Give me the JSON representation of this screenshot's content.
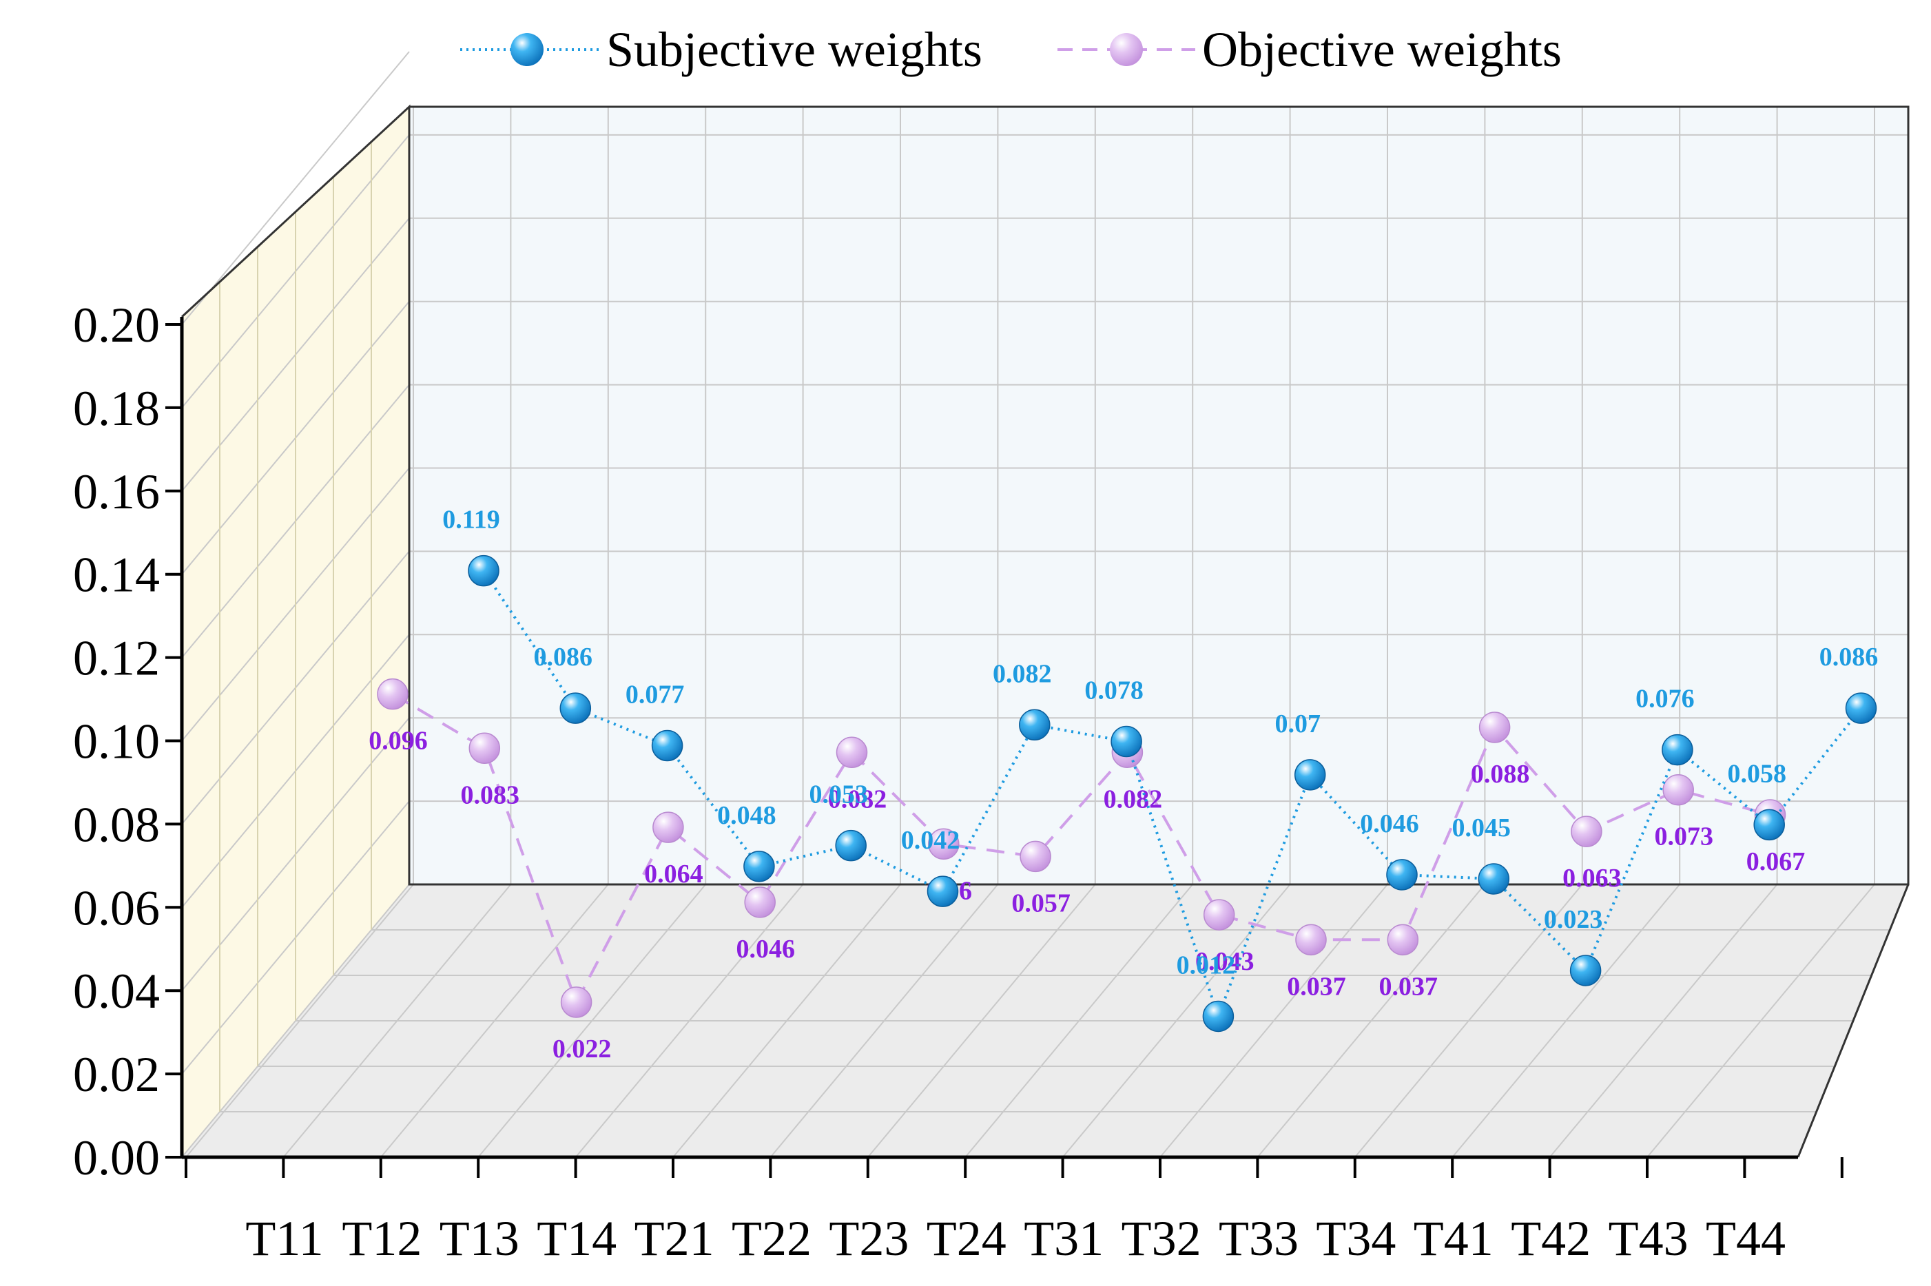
{
  "chart_data": {
    "type": "line",
    "title": "",
    "xlabel": "",
    "ylabel": "",
    "categories": [
      "T11",
      "T12",
      "T13",
      "T14",
      "T21",
      "T22",
      "T23",
      "T24",
      "T31",
      "T32",
      "T33",
      "T34",
      "T41",
      "T42",
      "T43",
      "T44"
    ],
    "y_ticks": [
      "0.00",
      "0.02",
      "0.04",
      "0.06",
      "0.08",
      "0.10",
      "0.12",
      "0.14",
      "0.16",
      "0.18",
      "0.20"
    ],
    "ylim": [
      0,
      0.2
    ],
    "grid": true,
    "legend_position": "top-center",
    "series": [
      {
        "name": "Subjective weights",
        "color": "#1e9be0",
        "line_style": "dotted",
        "values": [
          0.119,
          0.086,
          0.077,
          0.048,
          0.053,
          0.042,
          0.082,
          0.078,
          0.012,
          0.07,
          0.046,
          0.045,
          0.023,
          0.076,
          0.058,
          0.086
        ],
        "labels": [
          "0.119",
          "0.086",
          "0.077",
          "0.048",
          "0.053",
          "0.042",
          "0.082",
          "0.078",
          "0.012",
          "0.07",
          "0.046",
          "0.045",
          "0.023",
          "0.076",
          "0.058",
          "0.086"
        ]
      },
      {
        "name": "Objective weights",
        "color": "#cf9ee8",
        "label_color": "#8b1fe0",
        "line_style": "dashed",
        "values": [
          0.096,
          0.083,
          0.022,
          0.064,
          0.046,
          0.082,
          0.06,
          0.057,
          0.082,
          0.043,
          0.037,
          0.037,
          0.088,
          0.063,
          0.073,
          0.067
        ],
        "labels": [
          "0.096",
          "0.083",
          "0.022",
          "0.064",
          "0.046",
          "0.082",
          "0.06",
          "0.057",
          "0.082",
          "0.043",
          "0.037",
          "0.037",
          "0.088",
          "0.063",
          "0.073",
          "0.067"
        ]
      }
    ]
  }
}
